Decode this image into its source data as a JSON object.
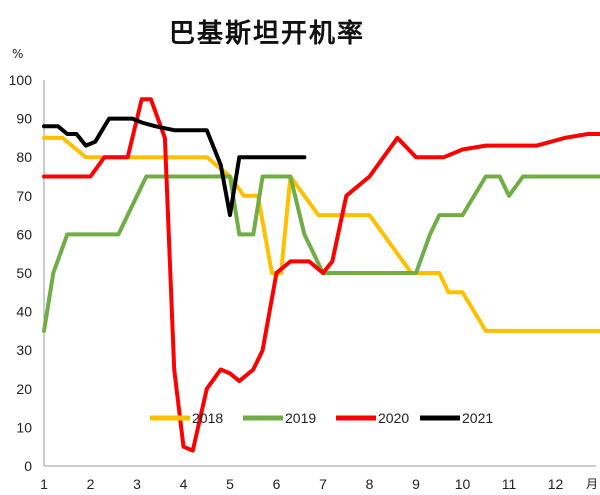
{
  "chart_data": {
    "type": "line",
    "title": "巴基斯坦开机率",
    "ylabel": "%",
    "xlabel": "月",
    "ylim": [
      0,
      100
    ],
    "xlim": [
      1,
      13.3
    ],
    "yticks": [
      0,
      10,
      20,
      30,
      40,
      50,
      60,
      70,
      80,
      90,
      100
    ],
    "xticks": [
      1,
      2,
      3,
      4,
      5,
      6,
      7,
      8,
      9,
      10,
      11,
      12
    ],
    "grid": false,
    "legend_position": "bottom",
    "series": [
      {
        "name": "2018",
        "color": "#FFC000",
        "points": [
          [
            1,
            85
          ],
          [
            1.4,
            85
          ],
          [
            1.9,
            80
          ],
          [
            3,
            80
          ],
          [
            4.5,
            80
          ],
          [
            5,
            75
          ],
          [
            5.3,
            70
          ],
          [
            5.6,
            70
          ],
          [
            5.75,
            60
          ],
          [
            5.9,
            50
          ],
          [
            6.1,
            50
          ],
          [
            6.3,
            75
          ],
          [
            6.6,
            70
          ],
          [
            6.9,
            65
          ],
          [
            8,
            65
          ],
          [
            8.3,
            60
          ],
          [
            8.6,
            55
          ],
          [
            8.9,
            50
          ],
          [
            9.5,
            50
          ],
          [
            9.7,
            45
          ],
          [
            10,
            45
          ],
          [
            10.5,
            35
          ],
          [
            11.5,
            35
          ],
          [
            12.3,
            35
          ],
          [
            13.2,
            35
          ]
        ]
      },
      {
        "name": "2019",
        "color": "#70AD47",
        "points": [
          [
            1,
            35
          ],
          [
            1.2,
            50
          ],
          [
            1.5,
            60
          ],
          [
            2.6,
            60
          ],
          [
            3,
            70
          ],
          [
            3.2,
            75
          ],
          [
            5,
            75
          ],
          [
            5.2,
            60
          ],
          [
            5.5,
            60
          ],
          [
            5.7,
            75
          ],
          [
            6.3,
            75
          ],
          [
            6.6,
            60
          ],
          [
            7,
            50
          ],
          [
            9,
            50
          ],
          [
            9.3,
            60
          ],
          [
            9.5,
            65
          ],
          [
            10,
            65
          ],
          [
            10.5,
            75
          ],
          [
            10.8,
            75
          ],
          [
            11,
            70
          ],
          [
            11.3,
            75
          ],
          [
            12.3,
            75
          ],
          [
            13,
            75
          ]
        ]
      },
      {
        "name": "2020",
        "color": "#FF0000",
        "points": [
          [
            1,
            75
          ],
          [
            2,
            75
          ],
          [
            2.3,
            80
          ],
          [
            2.8,
            80
          ],
          [
            3.1,
            95
          ],
          [
            3.3,
            95
          ],
          [
            3.6,
            85
          ],
          [
            3.8,
            25
          ],
          [
            4,
            5
          ],
          [
            4.2,
            4
          ],
          [
            4.5,
            20
          ],
          [
            4.8,
            25
          ],
          [
            5,
            24
          ],
          [
            5.2,
            22
          ],
          [
            5.5,
            25
          ],
          [
            5.7,
            30
          ],
          [
            6,
            50
          ],
          [
            6.3,
            53
          ],
          [
            6.7,
            53
          ],
          [
            7,
            50
          ],
          [
            7.2,
            53
          ],
          [
            7.5,
            70
          ],
          [
            8,
            75
          ],
          [
            8.3,
            80
          ],
          [
            8.6,
            85
          ],
          [
            9,
            80
          ],
          [
            9.6,
            80
          ],
          [
            10,
            82
          ],
          [
            10.5,
            83
          ],
          [
            11.6,
            83
          ],
          [
            12.2,
            85
          ],
          [
            12.7,
            86
          ],
          [
            13.1,
            86
          ],
          [
            13.3,
            88
          ]
        ]
      },
      {
        "name": "2021",
        "color": "#000000",
        "points": [
          [
            1,
            88
          ],
          [
            1.3,
            88
          ],
          [
            1.5,
            86
          ],
          [
            1.7,
            86
          ],
          [
            1.9,
            83
          ],
          [
            2.1,
            84
          ],
          [
            2.4,
            90
          ],
          [
            2.9,
            90
          ],
          [
            3.1,
            89
          ],
          [
            3.4,
            88
          ],
          [
            3.8,
            87
          ],
          [
            4.5,
            87
          ],
          [
            4.8,
            78
          ],
          [
            5,
            65
          ],
          [
            5.2,
            80
          ],
          [
            6.6,
            80
          ]
        ]
      }
    ]
  }
}
